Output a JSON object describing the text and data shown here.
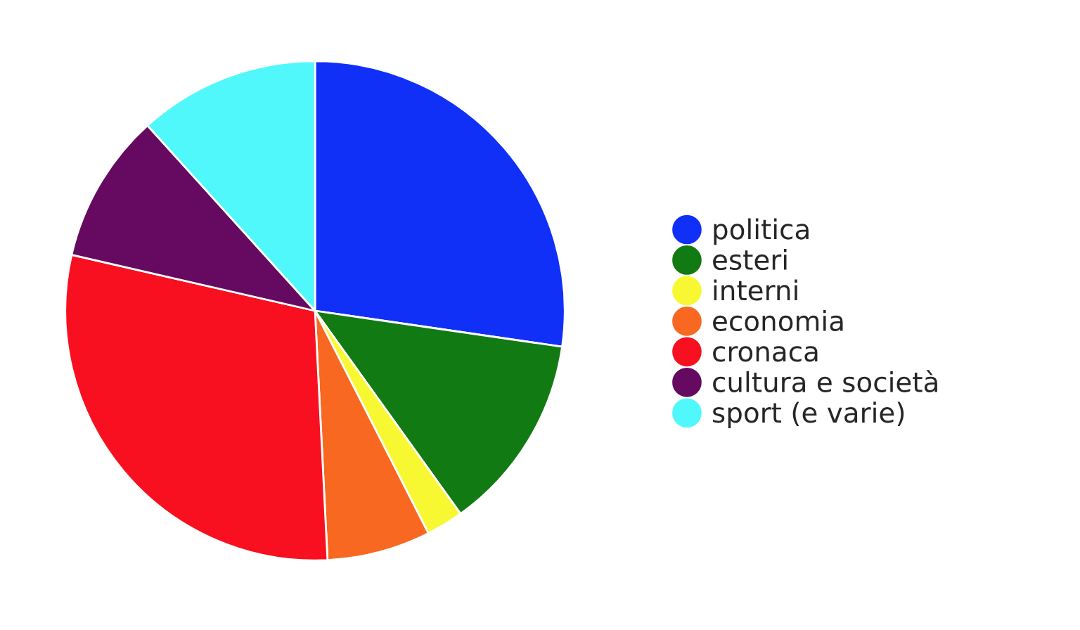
{
  "chart_data": {
    "type": "pie",
    "categories": [
      "politica",
      "esteri",
      "interni",
      "economia",
      "cronaca",
      "cultura e società",
      "sport (e varie)"
    ],
    "values": [
      27.3,
      12.8,
      2.4,
      6.7,
      29.4,
      9.7,
      11.7
    ],
    "colors": [
      "#1030f8",
      "#127a12",
      "#f8f832",
      "#f86820",
      "#f81020",
      "#650a60",
      "#50f8fc"
    ],
    "legend": "right"
  }
}
